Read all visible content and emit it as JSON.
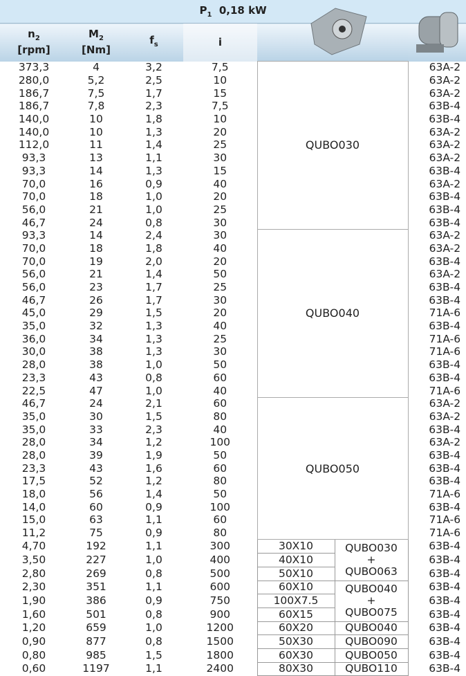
{
  "header": {
    "power": {
      "symbol": "P",
      "sub": "1",
      "value": "0,18 kW"
    },
    "columns": [
      {
        "main": "n",
        "sub": "2",
        "unit": "[rpm]"
      },
      {
        "main": "M",
        "sub": "2",
        "unit": "[Nm]"
      },
      {
        "main": "f",
        "sub": "s",
        "unit": ""
      },
      {
        "main": "i",
        "sub": "",
        "unit": ""
      }
    ]
  },
  "blocks": [
    {
      "label": "QUBO030",
      "rows": [
        [
          "373,3",
          "4",
          "3,2",
          "7,5",
          "63A-2"
        ],
        [
          "280,0",
          "5,2",
          "2,5",
          "10",
          "63A-2"
        ],
        [
          "186,7",
          "7,5",
          "1,7",
          "15",
          "63A-2"
        ],
        [
          "186,7",
          "7,8",
          "2,3",
          "7,5",
          "63B-4"
        ],
        [
          "140,0",
          "10",
          "1,8",
          "10",
          "63B-4"
        ],
        [
          "140,0",
          "10",
          "1,3",
          "20",
          "63A-2"
        ],
        [
          "112,0",
          "11",
          "1,4",
          "25",
          "63A-2"
        ],
        [
          "93,3",
          "13",
          "1,1",
          "30",
          "63A-2"
        ],
        [
          "93,3",
          "14",
          "1,3",
          "15",
          "63B-4"
        ],
        [
          "70,0",
          "16",
          "0,9",
          "40",
          "63A-2"
        ],
        [
          "70,0",
          "18",
          "1,0",
          "20",
          "63B-4"
        ],
        [
          "56,0",
          "21",
          "1,0",
          "25",
          "63B-4"
        ],
        [
          "46,7",
          "24",
          "0,8",
          "30",
          "63B-4"
        ]
      ]
    },
    {
      "label": "QUBO040",
      "rows": [
        [
          "93,3",
          "14",
          "2,4",
          "30",
          "63A-2"
        ],
        [
          "70,0",
          "18",
          "1,8",
          "40",
          "63A-2"
        ],
        [
          "70,0",
          "19",
          "2,0",
          "20",
          "63B-4"
        ],
        [
          "56,0",
          "21",
          "1,4",
          "50",
          "63A-2"
        ],
        [
          "56,0",
          "23",
          "1,7",
          "25",
          "63B-4"
        ],
        [
          "46,7",
          "26",
          "1,7",
          "30",
          "63B-4"
        ],
        [
          "45,0",
          "29",
          "1,5",
          "20",
          "71A-6"
        ],
        [
          "35,0",
          "32",
          "1,3",
          "40",
          "63B-4"
        ],
        [
          "36,0",
          "34",
          "1,3",
          "25",
          "71A-6"
        ],
        [
          "30,0",
          "38",
          "1,3",
          "30",
          "71A-6"
        ],
        [
          "28,0",
          "38",
          "1,0",
          "50",
          "63B-4"
        ],
        [
          "23,3",
          "43",
          "0,8",
          "60",
          "63B-4"
        ],
        [
          "22,5",
          "47",
          "1,0",
          "40",
          "71A-6"
        ]
      ]
    },
    {
      "label": "QUBO050",
      "rows": [
        [
          "46,7",
          "24",
          "2,1",
          "60",
          "63A-2"
        ],
        [
          "35,0",
          "30",
          "1,5",
          "80",
          "63A-2"
        ],
        [
          "35,0",
          "33",
          "2,3",
          "40",
          "63B-4"
        ],
        [
          "28,0",
          "34",
          "1,2",
          "100",
          "63A-2"
        ],
        [
          "28,0",
          "39",
          "1,9",
          "50",
          "63B-4"
        ],
        [
          "23,3",
          "43",
          "1,6",
          "60",
          "63B-4"
        ],
        [
          "17,5",
          "52",
          "1,2",
          "80",
          "63B-4"
        ],
        [
          "18,0",
          "56",
          "1,4",
          "50",
          "71A-6"
        ],
        [
          "14,0",
          "60",
          "0,9",
          "100",
          "63B-4"
        ],
        [
          "15,0",
          "63",
          "1,1",
          "60",
          "71A-6"
        ],
        [
          "11,2",
          "75",
          "0,9",
          "80",
          "71A-6"
        ]
      ]
    },
    {
      "sizes": [
        "30X10",
        "40X10",
        "50X10"
      ],
      "reducers": [
        "QUBO030",
        "+",
        "QUBO063"
      ],
      "rows": [
        [
          "4,70",
          "192",
          "1,1",
          "300",
          "63B-4"
        ],
        [
          "3,50",
          "227",
          "1,0",
          "400",
          "63B-4"
        ],
        [
          "2,80",
          "269",
          "0,8",
          "500",
          "63B-4"
        ]
      ]
    },
    {
      "sizes": [
        "60X10",
        "100X7.5",
        "60X15"
      ],
      "reducers": [
        "QUBO040",
        "+",
        "QUBO075"
      ],
      "rows": [
        [
          "2,30",
          "351",
          "1,1",
          "600",
          "63B-4"
        ],
        [
          "1,90",
          "386",
          "0,9",
          "750",
          "63B-4"
        ],
        [
          "1,60",
          "501",
          "0,8",
          "900",
          "63B-4"
        ]
      ]
    },
    {
      "sizes": [
        "60X20"
      ],
      "reducers": [
        "QUBO040"
      ],
      "rows": [
        [
          "1,20",
          "659",
          "1,0",
          "1200",
          "63B-4"
        ]
      ]
    },
    {
      "sizes": [
        "50X30"
      ],
      "reducers": [
        "QUBO090"
      ],
      "rows": [
        [
          "0,90",
          "877",
          "0,8",
          "1500",
          "63B-4"
        ]
      ]
    },
    {
      "sizes": [
        "60X30"
      ],
      "reducers": [
        "QUBO050"
      ],
      "rows": [
        [
          "0,80",
          "985",
          "1,5",
          "1800",
          "63B-4"
        ]
      ]
    },
    {
      "sizes": [
        "80X30"
      ],
      "reducers": [
        "QUBO110"
      ],
      "rows": [
        [
          "0,60",
          "1197",
          "1,1",
          "2400",
          "63B-4"
        ]
      ]
    }
  ]
}
